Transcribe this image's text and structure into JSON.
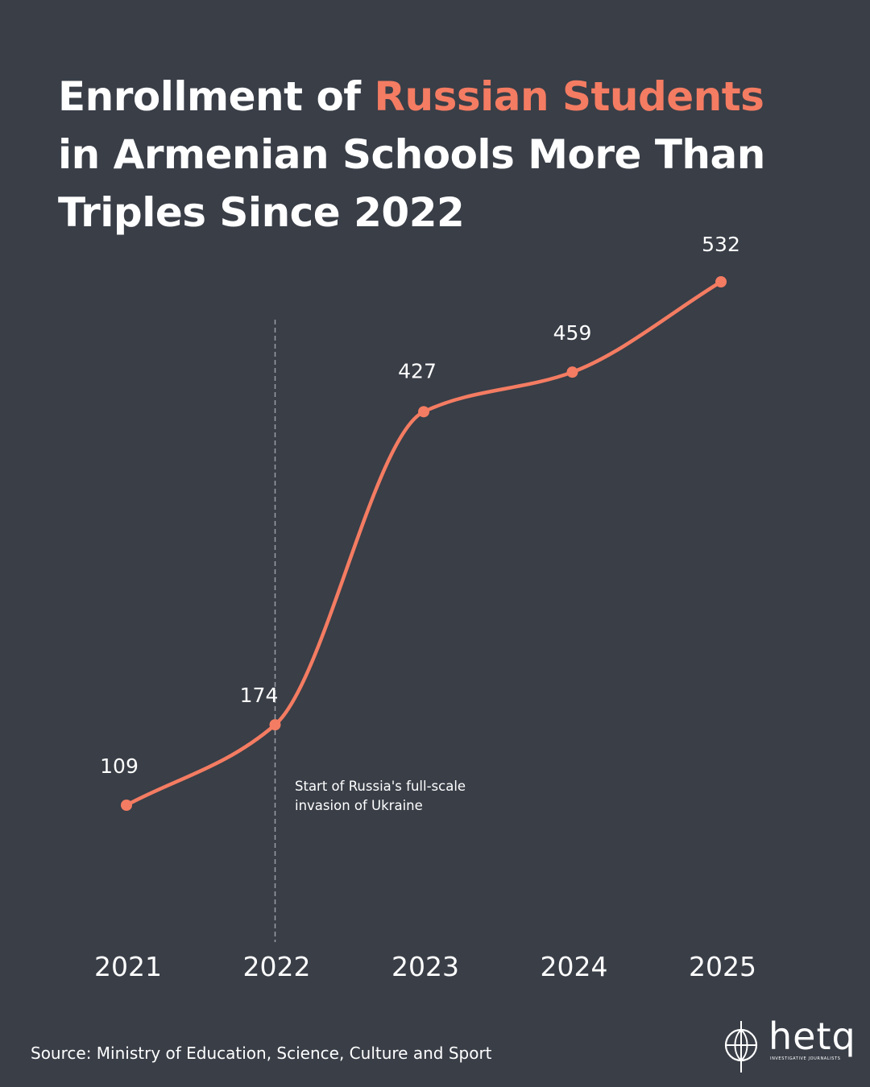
{
  "title": {
    "part1": "Enrollment of ",
    "highlight": "Russian Students",
    "part2": "in Armenian Schools More Than",
    "part3": "Triples Since 2022"
  },
  "colors": {
    "background": "#393e47",
    "line": "#f47c62",
    "text": "#ffffff",
    "annotation_line": "#9a9ea6"
  },
  "chart_data": {
    "type": "line",
    "title": "Enrollment of Russian Students in Armenian Schools More Than Triples Since 2022",
    "categories": [
      "2021",
      "2022",
      "2023",
      "2024",
      "2025"
    ],
    "series": [
      {
        "values": [
          109,
          174,
          427,
          459,
          532
        ]
      }
    ],
    "data_labels": [
      "109",
      "174",
      "427",
      "459",
      "532"
    ],
    "smooth": true,
    "grid": false,
    "annotation": {
      "at_category": "2022",
      "line_style": "dashed-vertical",
      "text_line1": "Start of Russia's full-scale",
      "text_line2": "invasion of Ukraine"
    }
  },
  "source": "Source: Ministry of Education, Science, Culture and Sport",
  "logo": {
    "wordmark": "hetq",
    "tagline": "INVESTIGATIVE JOURNALISTS",
    "icon": "hetq-globe-icon"
  }
}
